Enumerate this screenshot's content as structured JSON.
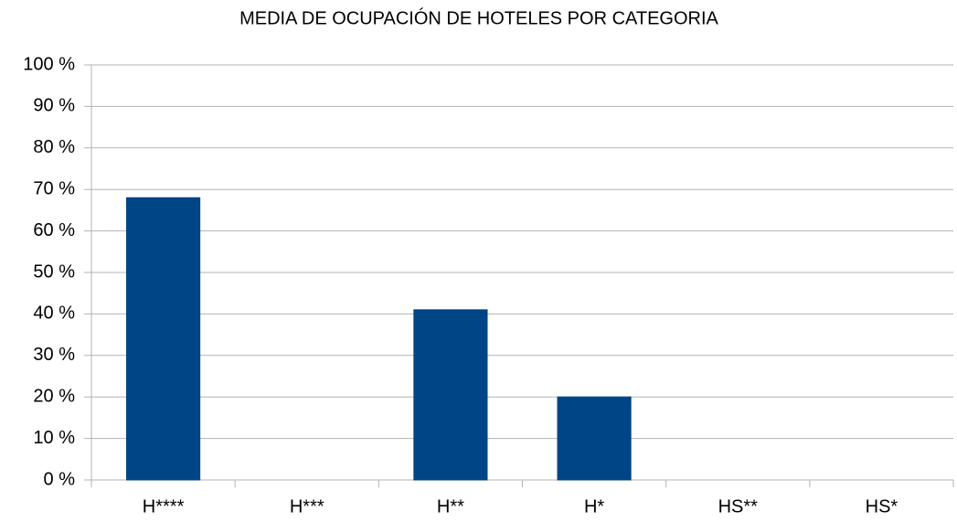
{
  "chart_data": {
    "type": "bar",
    "title": "MEDIA DE OCUPACIÓN DE HOTELES POR CATEGORIA",
    "categories": [
      "H****",
      "H***",
      "H**",
      "H*",
      "HS**",
      "HS*"
    ],
    "values": [
      68,
      0,
      41,
      20,
      0,
      0
    ],
    "color": "#004586",
    "ylim": [
      0,
      100
    ],
    "yticks": [
      {
        "value": 0,
        "label": "0 %"
      },
      {
        "value": 10,
        "label": "10 %"
      },
      {
        "value": 20,
        "label": "20 %"
      },
      {
        "value": 30,
        "label": "30 %"
      },
      {
        "value": 40,
        "label": "40 %"
      },
      {
        "value": 50,
        "label": "50 %"
      },
      {
        "value": 60,
        "label": "60 %"
      },
      {
        "value": 70,
        "label": "70 %"
      },
      {
        "value": 80,
        "label": "80 %"
      },
      {
        "value": 90,
        "label": "90 %"
      },
      {
        "value": 100,
        "label": "100 %"
      }
    ],
    "grid": true
  }
}
